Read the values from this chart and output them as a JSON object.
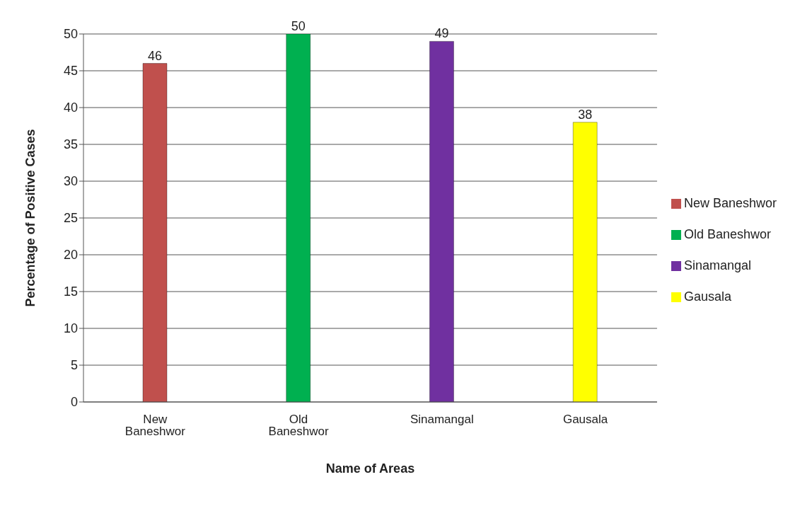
{
  "chart_data": {
    "type": "bar",
    "xlabel": "Name of Areas",
    "ylabel": "Percentage of Positive Cases",
    "categories": [
      "New Baneshwor",
      "Old Baneshwor",
      "Sinamangal",
      "Gausala"
    ],
    "series": [
      {
        "name": "New Baneshwor",
        "color": "#c0504d",
        "values": [
          46,
          null,
          null,
          null
        ]
      },
      {
        "name": "Old Baneshwor",
        "color": "#00b050",
        "values": [
          null,
          50,
          null,
          null
        ]
      },
      {
        "name": "Sinamangal",
        "color": "#7030a0",
        "values": [
          null,
          null,
          49,
          null
        ]
      },
      {
        "name": "Gausala",
        "color": "#ffff00",
        "values": [
          null,
          null,
          null,
          38
        ]
      }
    ],
    "stacked": true,
    "ylim": [
      0,
      50
    ],
    "yticks": [
      0,
      5,
      10,
      15,
      20,
      25,
      30,
      35,
      40,
      45,
      50
    ],
    "grid": "y",
    "legend": "right",
    "data_labels": true
  }
}
